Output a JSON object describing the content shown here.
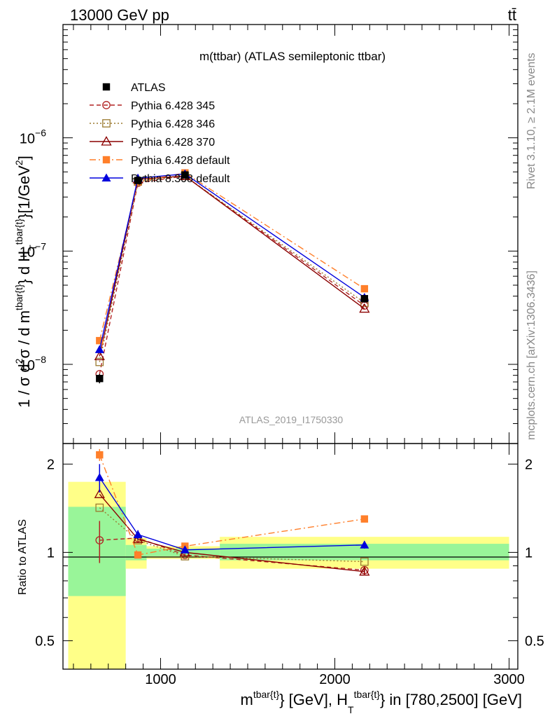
{
  "header": {
    "beam": "13000 GeV pp",
    "process": "tt̄"
  },
  "side_labels": {
    "rivet": "Rivet 3.1.10, ≥ 2.1M events",
    "mcplots": "mcplots.cern.ch [arXiv:1306.3436]"
  },
  "chart_data": [
    {
      "type": "line",
      "title": "m(ttbar) (ATLAS semileptonic ttbar)",
      "watermark": "ATLAS_2019_I1750330",
      "ylabel_parts": [
        "1 / σ d",
        "2",
        "σ / d m",
        "tbar{t}",
        "} d H",
        "T",
        "tbar{t}",
        "}[1/GeV",
        "2",
        "]"
      ],
      "yscale": "log",
      "ylim": [
        2e-09,
        1e-05
      ],
      "xlim": [
        440,
        3050
      ],
      "y_ticks": [
        {
          "value": 1e-08,
          "base": "10",
          "exp": "−8"
        },
        {
          "value": 1e-07,
          "base": "10",
          "exp": "−7"
        },
        {
          "value": 1e-06,
          "base": "10",
          "exp": "−6"
        }
      ],
      "series": [
        {
          "name": "ATLAS",
          "color": "#000000",
          "marker": "square-filled",
          "line": "none",
          "x": [
            650,
            870,
            1140,
            2170
          ],
          "y": [
            7.5e-09,
            4.2e-07,
            4.7e-07,
            3.8e-08
          ],
          "yerr": [
            7e-10,
            1e-08,
            1e-08,
            3e-09
          ]
        },
        {
          "name": "Pythia 6.428 345",
          "color": "#b22222",
          "marker": "circle-open",
          "line": "dashed",
          "x": [
            650,
            870,
            1140,
            2170
          ],
          "y": [
            8.2e-09,
            4e-07,
            4.6e-07,
            3.3e-08
          ]
        },
        {
          "name": "Pythia 6.428 346",
          "color": "#9b7a2f",
          "marker": "square-open",
          "line": "dotted",
          "x": [
            650,
            870,
            1140,
            2170
          ],
          "y": [
            1.05e-08,
            4.1e-07,
            4.6e-07,
            3.5e-08
          ]
        },
        {
          "name": "Pythia 6.428 370",
          "color": "#8b0000",
          "marker": "triangle-open",
          "line": "solid",
          "x": [
            650,
            870,
            1140,
            2170
          ],
          "y": [
            1.18e-08,
            4.3e-07,
            4.6e-07,
            3.1e-08
          ]
        },
        {
          "name": "Pythia 6.428 default",
          "color": "#ff7f2a",
          "marker": "square-filled",
          "line": "dashdot",
          "x": [
            650,
            870,
            1140,
            2170
          ],
          "y": [
            1.62e-08,
            4.1e-07,
            4.9e-07,
            4.65e-08
          ]
        },
        {
          "name": "Pythia 8.308 default",
          "color": "#0000dd",
          "marker": "triangle-filled",
          "line": "solid",
          "x": [
            650,
            870,
            1140,
            2170
          ],
          "y": [
            1.35e-08,
            4.4e-07,
            4.8e-07,
            3.9e-08
          ]
        }
      ]
    },
    {
      "type": "line",
      "ylabel": "Ratio to ATLAS",
      "xlabel_parts": [
        "m",
        "tbar{t}",
        "} [GeV], H",
        "T",
        "tbar{t}",
        "} in [780,2500] [GeV]"
      ],
      "yscale": "log",
      "ylim": [
        0.4,
        2.35
      ],
      "xlim": [
        440,
        3050
      ],
      "y_ticks": [
        {
          "value": 0.5,
          "label": "0.5"
        },
        {
          "value": 1,
          "label": "1"
        },
        {
          "value": 2,
          "label": "2"
        }
      ],
      "x_ticks": [
        {
          "value": 1000,
          "label": "1000"
        },
        {
          "value": 2000,
          "label": "2000"
        },
        {
          "value": 3000,
          "label": "3000"
        }
      ],
      "uncertainty_bands": [
        {
          "x": [
            470,
            800
          ],
          "inner": [
            0.71,
            1.43
          ],
          "outer": [
            0.4,
            1.74
          ]
        },
        {
          "x": [
            800,
            920
          ],
          "inner": [
            0.94,
            1.06
          ],
          "outer": [
            0.88,
            1.12
          ]
        },
        {
          "x": [
            920,
            1340
          ],
          "inner": [
            0.97,
            1.03
          ],
          "outer": [
            0.95,
            1.05
          ]
        },
        {
          "x": [
            1340,
            3000
          ],
          "inner": [
            0.94,
            1.07
          ],
          "outer": [
            0.88,
            1.13
          ]
        }
      ],
      "series": [
        {
          "name": "Pythia 6.428 345",
          "color": "#b22222",
          "marker": "circle-open",
          "line": "dashed",
          "x": [
            650,
            870,
            1140,
            2170
          ],
          "y": [
            1.1,
            1.12,
            0.98,
            0.87
          ],
          "yerr": [
            0.18,
            0.03,
            0.01,
            0.02
          ]
        },
        {
          "name": "Pythia 6.428 346",
          "color": "#9b7a2f",
          "marker": "square-open",
          "line": "dotted",
          "x": [
            650,
            870,
            1140,
            2170
          ],
          "y": [
            1.42,
            1.1,
            0.97,
            0.93
          ]
        },
        {
          "name": "Pythia 6.428 370",
          "color": "#8b0000",
          "marker": "triangle-open",
          "line": "solid",
          "x": [
            650,
            870,
            1140,
            2170
          ],
          "y": [
            1.58,
            1.11,
            1.0,
            0.86
          ],
          "yerr": [
            0.0,
            0.0,
            0.0,
            0.02
          ]
        },
        {
          "name": "Pythia 6.428 default",
          "color": "#ff7f2a",
          "marker": "square-filled",
          "line": "dashdot",
          "x": [
            650,
            870,
            1140,
            2170
          ],
          "y": [
            2.15,
            0.98,
            1.05,
            1.3
          ],
          "yerr": [
            0.1,
            0.02,
            0.01,
            0.03
          ]
        },
        {
          "name": "Pythia 8.308 default",
          "color": "#0000dd",
          "marker": "triangle-filled",
          "line": "solid",
          "x": [
            650,
            870,
            1140,
            2170
          ],
          "y": [
            1.8,
            1.15,
            1.02,
            1.06
          ],
          "yerr": [
            0.2,
            0.04,
            0.01,
            0.03
          ]
        }
      ]
    }
  ]
}
